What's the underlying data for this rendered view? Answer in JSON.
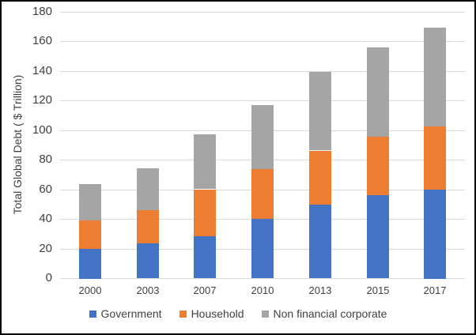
{
  "chart_data": {
    "type": "bar",
    "stacked": true,
    "title": "",
    "xlabel": "",
    "ylabel": "Total Global Debt ( $ Trillion)",
    "categories": [
      "2000",
      "2003",
      "2007",
      "2010",
      "2013",
      "2015",
      "2017"
    ],
    "series": [
      {
        "name": "Government",
        "color": "#4472C4",
        "values": [
          20,
          23.5,
          28.5,
          40,
          50,
          56,
          60
        ]
      },
      {
        "name": "Household",
        "color": "#ED7D31",
        "values": [
          19,
          22.5,
          31.5,
          34,
          36,
          39.5,
          42.5
        ]
      },
      {
        "name": "Non financial corporate",
        "color": "#A5A5A5",
        "values": [
          24.5,
          28,
          37,
          43,
          53,
          60.5,
          66.5
        ]
      }
    ],
    "stack_totals": [
      63.5,
      74,
      97,
      117,
      139,
      156,
      169
    ],
    "ylim": [
      0,
      180
    ],
    "yticks": [
      0,
      20,
      40,
      60,
      80,
      100,
      120,
      140,
      160,
      180
    ],
    "grid": true,
    "legend_position": "bottom"
  },
  "colors": {
    "government": "#4472C4",
    "household": "#ED7D31",
    "non_financial_corporate": "#A5A5A5",
    "gridline": "#D9D9D9",
    "axis_text": "#404040",
    "chart_border": "#000000",
    "background": "#FFFFFF"
  }
}
